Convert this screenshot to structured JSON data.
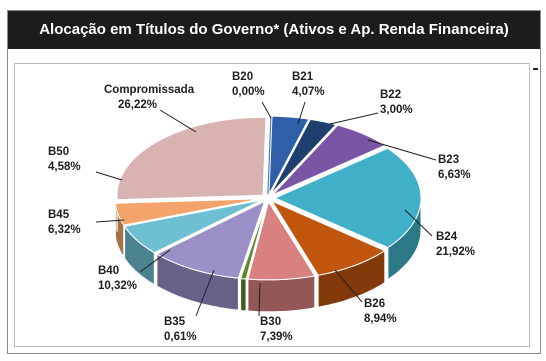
{
  "chart_data": {
    "type": "pie",
    "title": "Alocação em Títulos do Governo* (Ativos e Ap. Renda Financeira)",
    "slices": [
      {
        "label": "B20",
        "value_label": "0,00%",
        "value": 0.0,
        "color": "#4a78c0"
      },
      {
        "label": "B21",
        "value_label": "4,07%",
        "value": 4.07,
        "color": "#2f5fa8"
      },
      {
        "label": "B22",
        "value_label": "3,00%",
        "value": 3.0,
        "color": "#1f3f6e"
      },
      {
        "label": "B23",
        "value_label": "6,63%",
        "value": 6.63,
        "color": "#7a55a6"
      },
      {
        "label": "B24",
        "value_label": "21,92%",
        "value": 21.92,
        "color": "#3fb0c8"
      },
      {
        "label": "B26",
        "value_label": "8,94%",
        "value": 8.94,
        "color": "#c0560e"
      },
      {
        "label": "B30",
        "value_label": "7,39%",
        "value": 7.39,
        "color": "#d98080"
      },
      {
        "label": "B35",
        "value_label": "0,61%",
        "value": 0.61,
        "color": "#5f8a2c"
      },
      {
        "label": "B40",
        "value_label": "10,32%",
        "value": 10.32,
        "color": "#9b8fc7"
      },
      {
        "label": "B45",
        "value_label": "6,32%",
        "value": 6.32,
        "color": "#6dbfd1"
      },
      {
        "label": "B50",
        "value_label": "4,58%",
        "value": 4.58,
        "color": "#f4a46a"
      },
      {
        "label": "Compromissada",
        "value_label": "26,22%",
        "value": 26.22,
        "color": "#d8b3b1"
      }
    ]
  }
}
